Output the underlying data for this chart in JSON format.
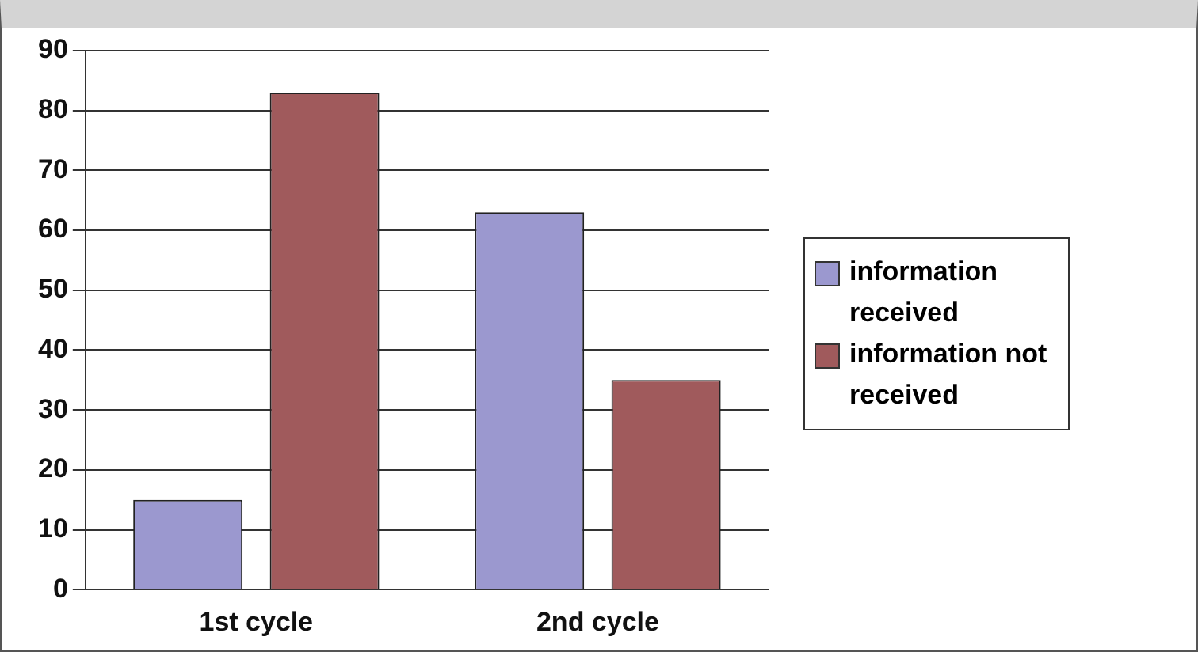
{
  "chart_data": {
    "type": "bar",
    "categories": [
      "1st cycle",
      "2nd cycle"
    ],
    "series": [
      {
        "name": "information received",
        "color": "#9b98cf",
        "values": [
          15,
          63
        ]
      },
      {
        "name": "information not received",
        "color": "#a05a5c",
        "values": [
          83,
          35
        ]
      }
    ],
    "ylim": [
      0,
      90
    ],
    "yticks": [
      0,
      10,
      20,
      30,
      40,
      50,
      60,
      70,
      80,
      90
    ],
    "grid": "y",
    "legend": "right"
  }
}
